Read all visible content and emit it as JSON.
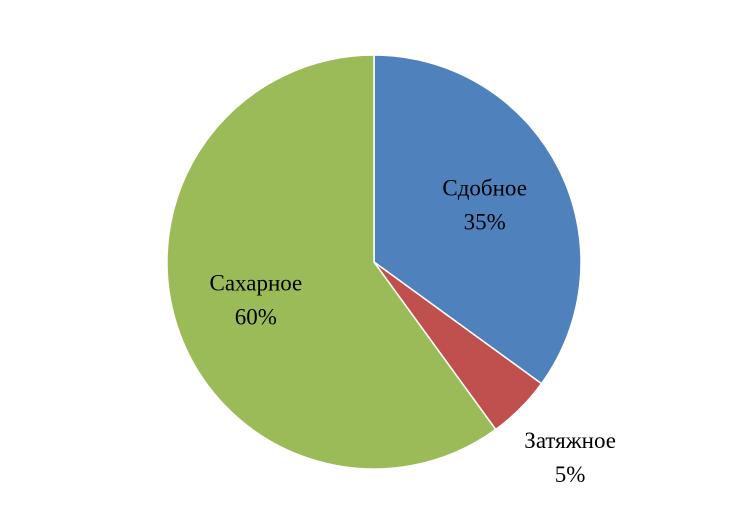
{
  "chart_data": {
    "type": "pie",
    "categories": [
      "Сдобное",
      "Затяжное",
      "Сахарное"
    ],
    "values": [
      35,
      5,
      60
    ],
    "value_labels": [
      "35%",
      "5%",
      "60%"
    ],
    "colors": [
      "#4f81bd",
      "#c0504d",
      "#9bbb59"
    ]
  }
}
